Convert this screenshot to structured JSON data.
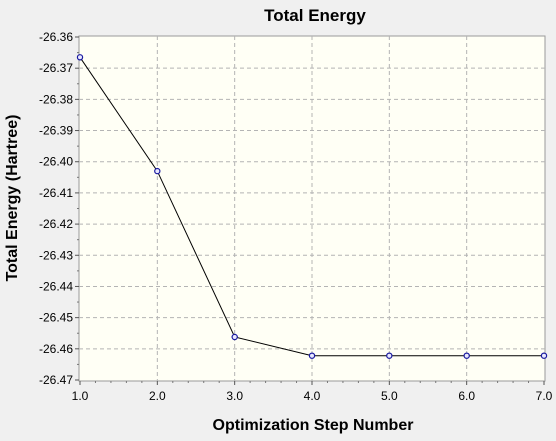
{
  "chart_data": {
    "type": "line",
    "title": "Total Energy",
    "xlabel": "Optimization Step Number",
    "ylabel": "Total Energy (Hartree)",
    "x": [
      1,
      2,
      3,
      4,
      5,
      6,
      7
    ],
    "series": [
      {
        "values": [
          -26.3665,
          -26.403,
          -26.4562,
          -26.4622,
          -26.4622,
          -26.4622,
          -26.4622
        ]
      }
    ],
    "xlim": [
      1.0,
      7.0
    ],
    "ylim": [
      -26.47,
      -26.36
    ],
    "x_ticks": [
      "1.0",
      "2.0",
      "3.0",
      "4.0",
      "5.0",
      "6.0",
      "7.0"
    ],
    "y_ticks": [
      "-26.36",
      "-26.37",
      "-26.38",
      "-26.39",
      "-26.40",
      "-26.41",
      "-26.42",
      "-26.43",
      "-26.44",
      "-26.45",
      "-26.46",
      "-26.47"
    ],
    "grid": true,
    "colors": {
      "line": "#000000",
      "marker": "#1a1aa0",
      "plot_bg": "#fffff5",
      "grid": "#b4b4b4"
    }
  }
}
